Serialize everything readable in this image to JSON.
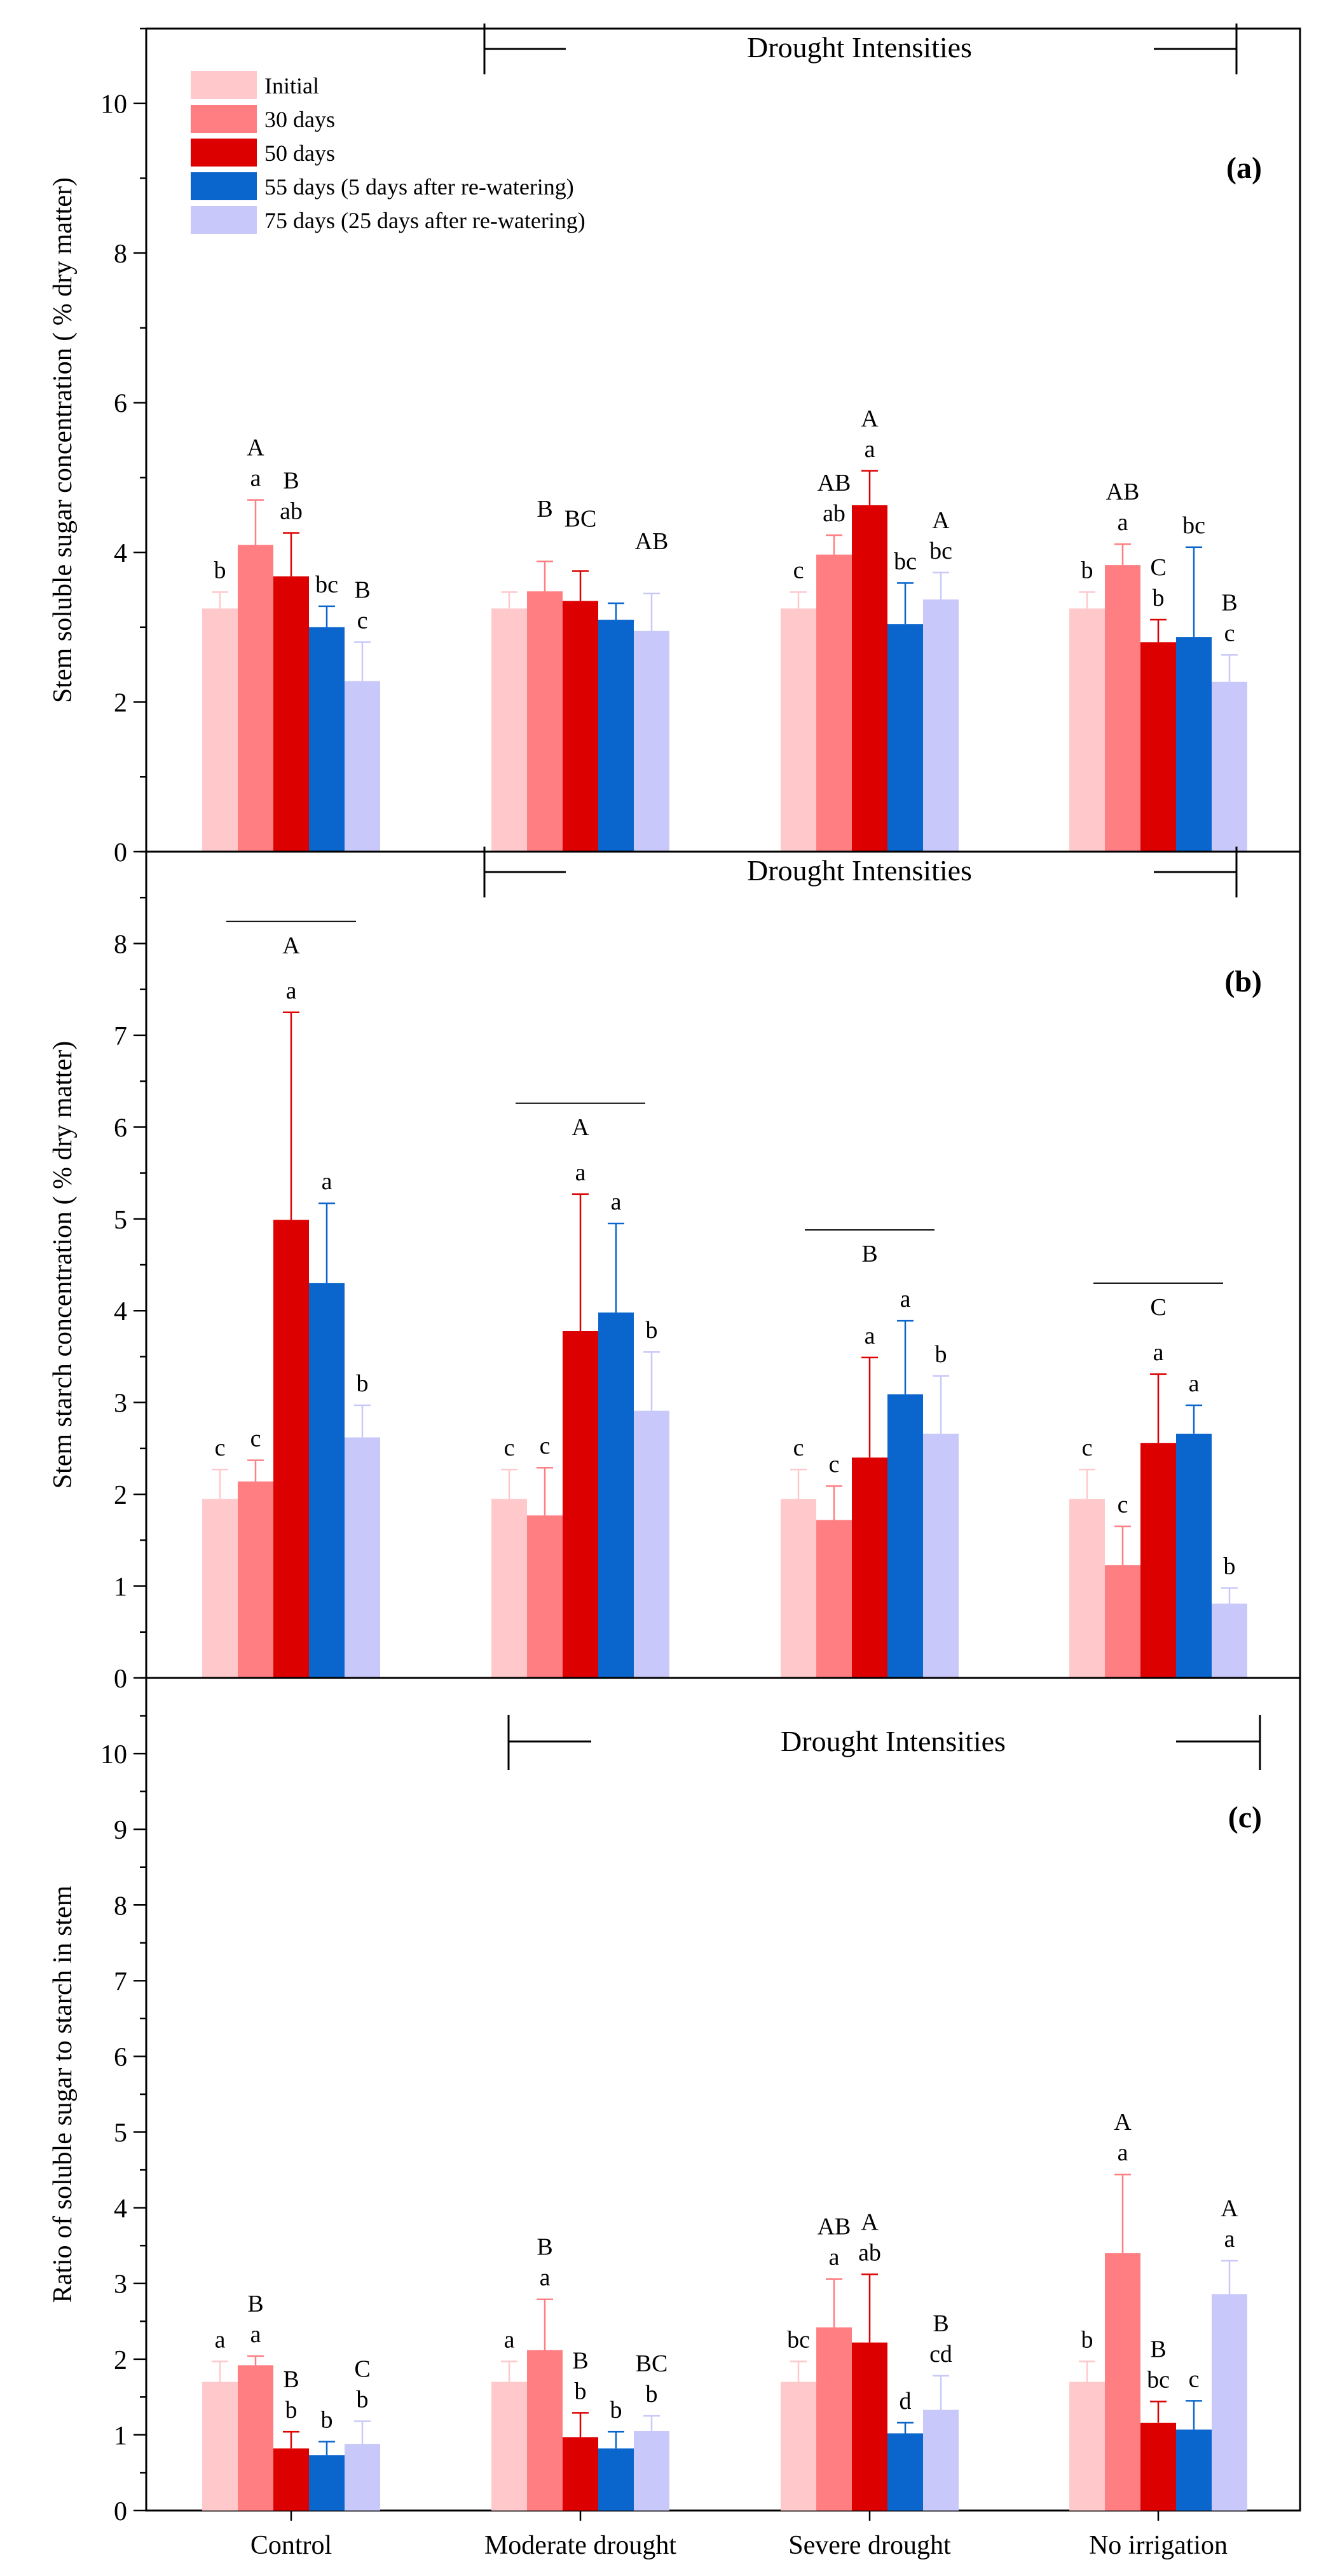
{
  "chart_data": {
    "type": "bar",
    "categories": [
      "Control",
      "Moderate drought",
      "Severe drought",
      "No irrigation"
    ],
    "series_names": [
      "Initial",
      "30 days",
      "50 days",
      "55 days (5 days after re-watering)",
      "75 days (25 days after re-watering)"
    ],
    "colors": [
      "#ffc9cc",
      "#ff7e82",
      "#dd0000",
      "#0a66cc",
      "#c8c8fa"
    ],
    "legend_position": "top-left",
    "panels": [
      {
        "tag": "(a)",
        "title": "Drought Intensities",
        "ylabel": "Stem soluble sugar concentration ( % dry matter)",
        "ylim": [
          0,
          11
        ],
        "ticks": [
          0,
          2,
          4,
          6,
          8,
          10
        ],
        "minor_step": 1,
        "values": [
          [
            3.25,
            4.1,
            3.68,
            3.0,
            2.28
          ],
          [
            3.25,
            3.48,
            3.35,
            3.1,
            2.95
          ],
          [
            3.25,
            3.97,
            4.63,
            3.04,
            3.37
          ],
          [
            3.25,
            3.83,
            2.8,
            2.87,
            2.27
          ]
        ],
        "errors": [
          [
            0.22,
            0.6,
            0.58,
            0.28,
            0.52
          ],
          [
            0.22,
            0.4,
            0.4,
            0.22,
            0.5
          ],
          [
            0.22,
            0.26,
            0.46,
            0.55,
            0.36
          ],
          [
            0.22,
            0.28,
            0.3,
            1.2,
            0.36
          ]
        ],
        "lower_letters": [
          [
            "b",
            "a",
            "ab",
            "bc",
            "c"
          ],
          [
            "",
            "",
            "",
            "",
            ""
          ],
          [
            "c",
            "ab",
            "a",
            "bc",
            "bc"
          ],
          [
            "b",
            "a",
            "b",
            "bc",
            "c"
          ]
        ],
        "upper_letters": [
          [
            "",
            "A",
            "B",
            "",
            "B"
          ],
          [
            "",
            "B",
            "BC",
            "",
            "AB"
          ],
          [
            "",
            "AB",
            "A",
            "",
            "A"
          ],
          [
            "",
            "AB",
            "C",
            "",
            "B"
          ]
        ],
        "group_letters": [
          "",
          "",
          "",
          ""
        ]
      },
      {
        "tag": "(b)",
        "title": "Drought Intensities",
        "ylabel": "Stem starch concentration ( % dry matter)",
        "ylim": [
          0,
          9
        ],
        "ticks": [
          0,
          1,
          2,
          3,
          4,
          5,
          6,
          7,
          8
        ],
        "minor_step": 0.5,
        "values": [
          [
            1.95,
            2.14,
            4.99,
            4.3,
            2.62
          ],
          [
            1.95,
            1.77,
            3.78,
            3.98,
            2.91
          ],
          [
            1.95,
            1.72,
            2.4,
            3.09,
            2.66
          ],
          [
            1.95,
            1.23,
            2.56,
            2.66,
            0.81
          ]
        ],
        "errors": [
          [
            0.32,
            0.23,
            2.26,
            0.87,
            0.35
          ],
          [
            0.32,
            0.52,
            1.49,
            0.97,
            0.64
          ],
          [
            0.32,
            0.37,
            1.09,
            0.8,
            0.63
          ],
          [
            0.32,
            0.42,
            0.75,
            0.31,
            0.17
          ]
        ],
        "lower_letters": [
          [
            "c",
            "c",
            "a",
            "a",
            "b"
          ],
          [
            "c",
            "c",
            "a",
            "a",
            "b"
          ],
          [
            "c",
            "c",
            "a",
            "a",
            "b"
          ],
          [
            "c",
            "c",
            "a",
            "a",
            "b"
          ]
        ],
        "upper_letters": [
          [
            "",
            "",
            "",
            "",
            ""
          ],
          [
            "",
            "",
            "",
            "",
            ""
          ],
          [
            "",
            "",
            "",
            "",
            ""
          ],
          [
            "",
            "",
            "",
            "",
            ""
          ]
        ],
        "group_letters": [
          "A",
          "A",
          "B",
          "C"
        ]
      },
      {
        "tag": "(c)",
        "title": "Drought Intensities",
        "ylabel": "Ratio of soluble sugar to starch in stem",
        "ylim": [
          0,
          11
        ],
        "ticks": [
          0,
          1,
          2,
          3,
          4,
          5,
          6,
          7,
          8,
          9,
          10
        ],
        "minor_step": 0.5,
        "values": [
          [
            1.7,
            1.92,
            0.82,
            0.73,
            0.88
          ],
          [
            1.7,
            2.12,
            0.97,
            0.82,
            1.05
          ],
          [
            1.7,
            2.42,
            2.22,
            1.02,
            1.33
          ],
          [
            1.7,
            3.4,
            1.16,
            1.07,
            2.86
          ]
        ],
        "errors": [
          [
            0.27,
            0.12,
            0.22,
            0.18,
            0.3
          ],
          [
            0.27,
            0.67,
            0.32,
            0.22,
            0.2
          ],
          [
            0.27,
            0.64,
            0.9,
            0.14,
            0.45
          ],
          [
            0.27,
            1.04,
            0.28,
            0.38,
            0.44
          ]
        ],
        "lower_letters": [
          [
            "a",
            "a",
            "b",
            "b",
            "b"
          ],
          [
            "a",
            "a",
            "b",
            "b",
            "b"
          ],
          [
            "bc",
            "a",
            "ab",
            "d",
            "cd"
          ],
          [
            "b",
            "a",
            "bc",
            "c",
            "a"
          ]
        ],
        "upper_letters": [
          [
            "",
            "B",
            "B",
            "",
            "C"
          ],
          [
            "",
            "B",
            "B",
            "",
            "BC"
          ],
          [
            "",
            "AB",
            "A",
            "",
            "B"
          ],
          [
            "",
            "A",
            "B",
            "",
            "A"
          ]
        ],
        "group_letters": [
          "",
          "",
          "",
          ""
        ]
      }
    ]
  }
}
